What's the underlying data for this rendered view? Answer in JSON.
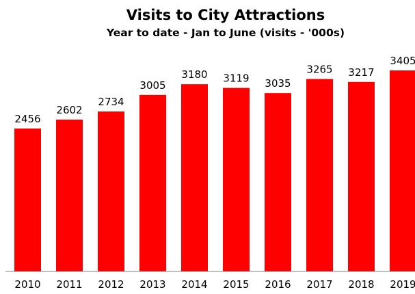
{
  "chart_data": {
    "type": "bar",
    "title": "Visits to City Attractions",
    "subtitle": "Year to date - Jan to June (visits - '000s)",
    "xlabel": "",
    "ylabel": "",
    "categories": [
      "2010",
      "2011",
      "2012",
      "2013",
      "2014",
      "2015",
      "2016",
      "2017",
      "2018",
      "2019"
    ],
    "values": [
      2456,
      2602,
      2734,
      3005,
      3180,
      3119,
      3035,
      3265,
      3217,
      3405
    ],
    "ylim": [
      0,
      3500
    ],
    "grid": false,
    "legend": "none",
    "bar_color": "#ff0000",
    "data_labels": true
  }
}
